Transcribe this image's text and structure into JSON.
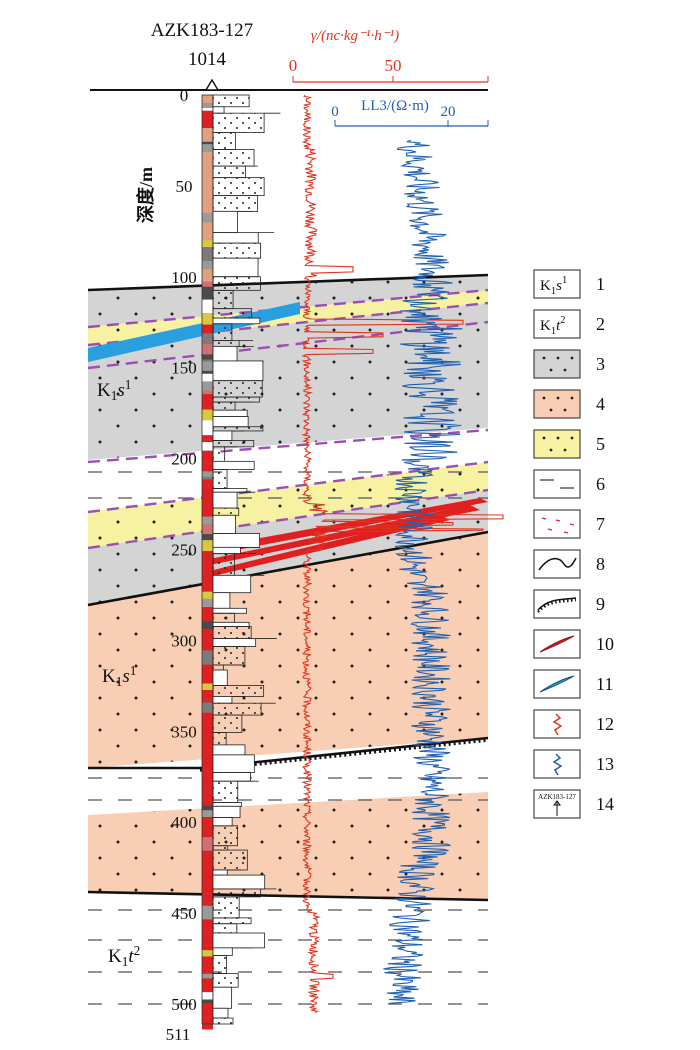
{
  "well": {
    "name": "AZK183-127",
    "elevation": "1014"
  },
  "depth_axis": {
    "label": "深度/m",
    "ticks": [
      "0",
      "50",
      "100",
      "150",
      "200",
      "250",
      "300",
      "350",
      "400",
      "450",
      "500"
    ],
    "bottom": "511"
  },
  "gamma_axis": {
    "label": "γ/(nc·kg⁻¹·h⁻¹)",
    "ticks": [
      "0",
      "50"
    ],
    "color": "#e0341e"
  },
  "resistivity_axis": {
    "label": "LL3/(Ω·m)",
    "ticks": [
      "0",
      "20"
    ],
    "color": "#1f5fb0"
  },
  "formation_labels": [
    {
      "main": "K",
      "sub": "1",
      "it": "s",
      "sup": "1"
    },
    {
      "main": "K",
      "sub": "1",
      "it": "s",
      "sup": "1"
    },
    {
      "main": "K",
      "sub": "1",
      "it": "t",
      "sup": "2"
    }
  ],
  "legend": [
    {
      "num": "1",
      "icon": "formation-K1s1-symbol",
      "text": {
        "main": "K",
        "sub": "1",
        "it": "s",
        "sup": "1"
      }
    },
    {
      "num": "2",
      "icon": "formation-K1t2-symbol",
      "text": {
        "main": "K",
        "sub": "1",
        "it": "t",
        "sup": "2"
      }
    },
    {
      "num": "3",
      "icon": "gray-sandstone-swatch"
    },
    {
      "num": "4",
      "icon": "orange-sandstone-swatch"
    },
    {
      "num": "5",
      "icon": "yellow-sandstone-swatch"
    },
    {
      "num": "6",
      "icon": "mudstone-dash-swatch"
    },
    {
      "num": "7",
      "icon": "red-dash-swatch"
    },
    {
      "num": "8",
      "icon": "boundary-line-symbol"
    },
    {
      "num": "9",
      "icon": "unconformity-symbol"
    },
    {
      "num": "10",
      "icon": "red-orebody-symbol"
    },
    {
      "num": "11",
      "icon": "blue-orebody-symbol"
    },
    {
      "num": "12",
      "icon": "gamma-curve-symbol"
    },
    {
      "num": "13",
      "icon": "resistivity-curve-symbol"
    },
    {
      "num": "14",
      "icon": "borehole-symbol",
      "caption": "AZK183-127"
    }
  ]
}
